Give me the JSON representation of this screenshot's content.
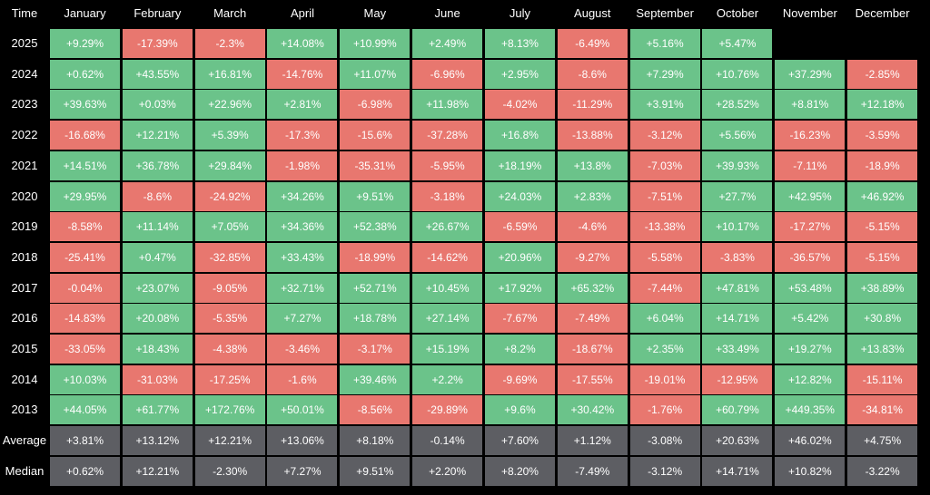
{
  "chart_data": {
    "type": "heatmap",
    "title": "",
    "corner_label": "Time",
    "months": [
      "January",
      "February",
      "March",
      "April",
      "May",
      "June",
      "July",
      "August",
      "September",
      "October",
      "November",
      "December"
    ],
    "rows": [
      {
        "label": "2025",
        "values": [
          "+9.29%",
          "-17.39%",
          "-2.3%",
          "+14.08%",
          "+10.99%",
          "+2.49%",
          "+8.13%",
          "-6.49%",
          "+5.16%",
          "+5.47%",
          "",
          ""
        ]
      },
      {
        "label": "2024",
        "values": [
          "+0.62%",
          "+43.55%",
          "+16.81%",
          "-14.76%",
          "+11.07%",
          "-6.96%",
          "+2.95%",
          "-8.6%",
          "+7.29%",
          "+10.76%",
          "+37.29%",
          "-2.85%"
        ]
      },
      {
        "label": "2023",
        "values": [
          "+39.63%",
          "+0.03%",
          "+22.96%",
          "+2.81%",
          "-6.98%",
          "+11.98%",
          "-4.02%",
          "-11.29%",
          "+3.91%",
          "+28.52%",
          "+8.81%",
          "+12.18%"
        ]
      },
      {
        "label": "2022",
        "values": [
          "-16.68%",
          "+12.21%",
          "+5.39%",
          "-17.3%",
          "-15.6%",
          "-37.28%",
          "+16.8%",
          "-13.88%",
          "-3.12%",
          "+5.56%",
          "-16.23%",
          "-3.59%"
        ]
      },
      {
        "label": "2021",
        "values": [
          "+14.51%",
          "+36.78%",
          "+29.84%",
          "-1.98%",
          "-35.31%",
          "-5.95%",
          "+18.19%",
          "+13.8%",
          "-7.03%",
          "+39.93%",
          "-7.11%",
          "-18.9%"
        ]
      },
      {
        "label": "2020",
        "values": [
          "+29.95%",
          "-8.6%",
          "-24.92%",
          "+34.26%",
          "+9.51%",
          "-3.18%",
          "+24.03%",
          "+2.83%",
          "-7.51%",
          "+27.7%",
          "+42.95%",
          "+46.92%"
        ]
      },
      {
        "label": "2019",
        "values": [
          "-8.58%",
          "+11.14%",
          "+7.05%",
          "+34.36%",
          "+52.38%",
          "+26.67%",
          "-6.59%",
          "-4.6%",
          "-13.38%",
          "+10.17%",
          "-17.27%",
          "-5.15%"
        ]
      },
      {
        "label": "2018",
        "values": [
          "-25.41%",
          "+0.47%",
          "-32.85%",
          "+33.43%",
          "-18.99%",
          "-14.62%",
          "+20.96%",
          "-9.27%",
          "-5.58%",
          "-3.83%",
          "-36.57%",
          "-5.15%"
        ]
      },
      {
        "label": "2017",
        "values": [
          "-0.04%",
          "+23.07%",
          "-9.05%",
          "+32.71%",
          "+52.71%",
          "+10.45%",
          "+17.92%",
          "+65.32%",
          "-7.44%",
          "+47.81%",
          "+53.48%",
          "+38.89%"
        ]
      },
      {
        "label": "2016",
        "values": [
          "-14.83%",
          "+20.08%",
          "-5.35%",
          "+7.27%",
          "+18.78%",
          "+27.14%",
          "-7.67%",
          "-7.49%",
          "+6.04%",
          "+14.71%",
          "+5.42%",
          "+30.8%"
        ]
      },
      {
        "label": "2015",
        "values": [
          "-33.05%",
          "+18.43%",
          "-4.38%",
          "-3.46%",
          "-3.17%",
          "+15.19%",
          "+8.2%",
          "-18.67%",
          "+2.35%",
          "+33.49%",
          "+19.27%",
          "+13.83%"
        ]
      },
      {
        "label": "2014",
        "values": [
          "+10.03%",
          "-31.03%",
          "-17.25%",
          "-1.6%",
          "+39.46%",
          "+2.2%",
          "-9.69%",
          "-17.55%",
          "-19.01%",
          "-12.95%",
          "+12.82%",
          "-15.11%"
        ]
      },
      {
        "label": "2013",
        "values": [
          "+44.05%",
          "+61.77%",
          "+172.76%",
          "+50.01%",
          "-8.56%",
          "-29.89%",
          "+9.6%",
          "+30.42%",
          "-1.76%",
          "+60.79%",
          "+449.35%",
          "-34.81%"
        ]
      }
    ],
    "summary": [
      {
        "label": "Average",
        "values": [
          "+3.81%",
          "+13.12%",
          "+12.21%",
          "+13.06%",
          "+8.18%",
          "-0.14%",
          "+7.60%",
          "+1.12%",
          "-3.08%",
          "+20.63%",
          "+46.02%",
          "+4.75%"
        ]
      },
      {
        "label": "Median",
        "values": [
          "+0.62%",
          "+12.21%",
          "-2.30%",
          "+7.27%",
          "+9.51%",
          "+2.20%",
          "+8.20%",
          "-7.49%",
          "-3.12%",
          "+14.71%",
          "+10.82%",
          "-3.22%"
        ]
      }
    ],
    "colors": {
      "positive": "#6bc38a",
      "negative": "#e8776f",
      "summary": "#5d5e63",
      "background": "#000000"
    }
  }
}
